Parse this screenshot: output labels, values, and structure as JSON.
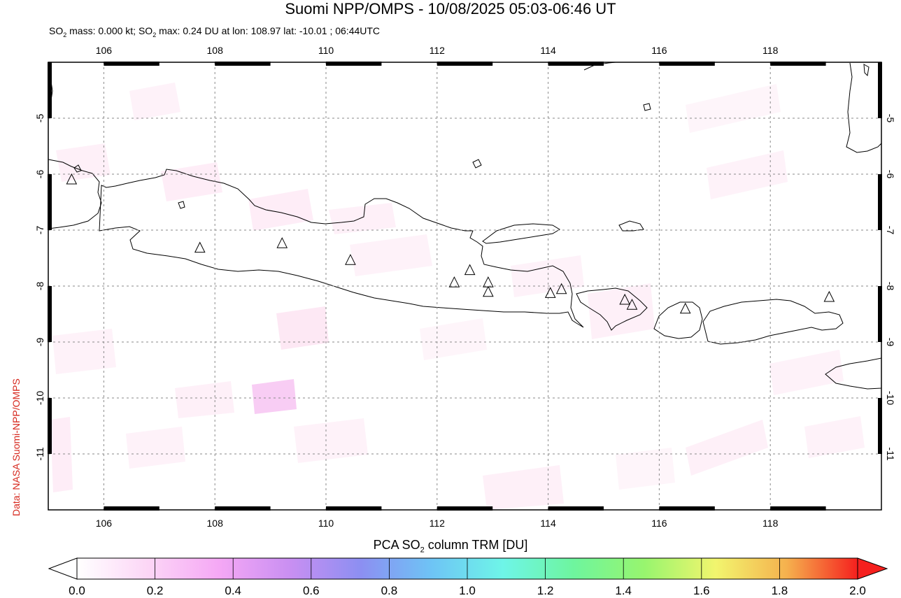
{
  "header": {
    "title": "Suomi NPP/OMPS - 10/08/2025 05:03-06:46 UT",
    "subtitle_parts": [
      "SO",
      "2",
      " mass: 0.000 kt; SO",
      "2",
      " max: 0.24 DU at lon: 108.97 lat: -10.01 ; 06:44UTC"
    ]
  },
  "credit": "Data: NASA Suomi-NPP/OMPS",
  "map": {
    "lon_range": [
      105,
      120
    ],
    "lat_range": [
      -12,
      -4
    ],
    "lon_ticks": [
      "106",
      "108",
      "110",
      "112",
      "114",
      "116",
      "118"
    ],
    "lon_values": [
      106,
      108,
      110,
      112,
      114,
      116,
      118
    ],
    "lat_ticks": [
      "-5",
      "-6",
      "-7",
      "-8",
      "-9",
      "-10",
      "-11"
    ],
    "lat_values": [
      -5,
      -6,
      -7,
      -8,
      -9,
      -10,
      -11
    ],
    "grid": true,
    "volcanoes": [
      {
        "lon": 105.42,
        "lat": -6.1
      },
      {
        "lon": 107.73,
        "lat": -7.32
      },
      {
        "lon": 109.21,
        "lat": -7.24
      },
      {
        "lon": 110.44,
        "lat": -7.54
      },
      {
        "lon": 112.31,
        "lat": -7.94
      },
      {
        "lon": 112.59,
        "lat": -7.72
      },
      {
        "lon": 112.92,
        "lat": -7.94
      },
      {
        "lon": 112.92,
        "lat": -8.11
      },
      {
        "lon": 114.04,
        "lat": -8.13
      },
      {
        "lon": 114.24,
        "lat": -8.06
      },
      {
        "lon": 115.38,
        "lat": -8.25
      },
      {
        "lon": 115.51,
        "lat": -8.34
      },
      {
        "lon": 116.47,
        "lat": -8.41
      },
      {
        "lon": 119.06,
        "lat": -8.2
      }
    ]
  },
  "colorbar": {
    "title_parts": [
      "PCA SO",
      "2",
      " column TRM [DU]"
    ],
    "tick_labels": [
      "0.0",
      "0.2",
      "0.4",
      "0.6",
      "0.8",
      "1.0",
      "1.2",
      "1.4",
      "1.6",
      "1.8",
      "2.0"
    ],
    "range": [
      0,
      2
    ],
    "colors": [
      "#ffffff",
      "#fcd6f6",
      "#f5a8f5",
      "#c98ff2",
      "#8c8ff2",
      "#6ec4f5",
      "#6ef5e8",
      "#6ef59e",
      "#98f56e",
      "#f2f56e",
      "#f5b14e",
      "#f5201e"
    ]
  }
}
